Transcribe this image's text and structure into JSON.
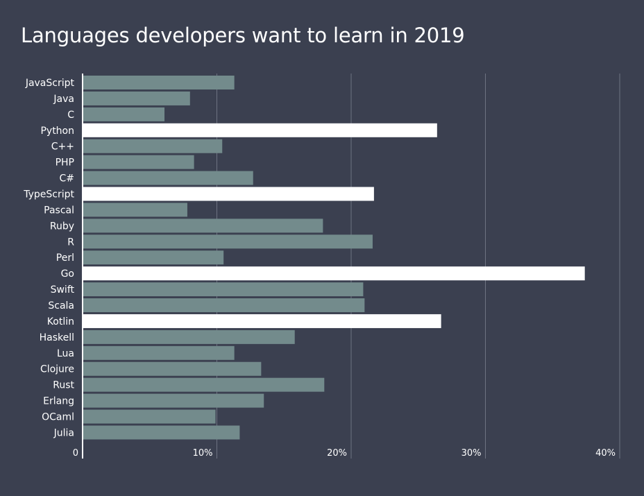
{
  "chart_data": {
    "type": "bar",
    "orientation": "horizontal",
    "title": "Languages developers want to learn in 2019",
    "xlabel": "",
    "ylabel": "",
    "xlim": [
      0,
      40
    ],
    "grid": true,
    "tick_labels": [
      "0",
      "10%",
      "20%",
      "30%",
      "40%"
    ],
    "tick_values": [
      0,
      10,
      20,
      30,
      40
    ],
    "categories": [
      "JavaScript",
      "Java",
      "C",
      "Python",
      "C++",
      "PHP",
      "C#",
      "TypeScript",
      "Pascal",
      "Ruby",
      "R",
      "Perl",
      "Go",
      "Swift",
      "Scala",
      "Kotlin",
      "Haskell",
      "Lua",
      "Clojure",
      "Rust",
      "Erlang",
      "OCaml",
      "Julia"
    ],
    "values": [
      11.3,
      8.0,
      6.1,
      26.4,
      10.4,
      8.3,
      12.7,
      21.7,
      7.8,
      17.9,
      21.6,
      10.5,
      37.4,
      20.9,
      21.0,
      26.7,
      15.8,
      11.3,
      13.3,
      18.0,
      13.5,
      9.9,
      11.7
    ],
    "highlighted": [
      "Python",
      "TypeScript",
      "Go",
      "Kotlin"
    ],
    "colors": {
      "background": "#3b4050",
      "bar": "#738b8c",
      "highlight": "#ffffff",
      "grid": "#6e7382",
      "axis": "#ffffff",
      "text": "#ffffff"
    }
  }
}
